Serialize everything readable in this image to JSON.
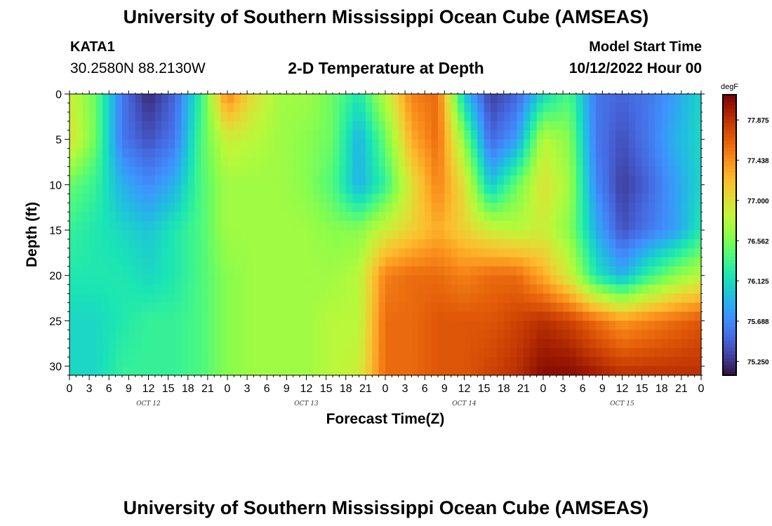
{
  "header": {
    "title": "University of Southern Mississippi Ocean Cube (AMSEAS)",
    "station": "KATA1",
    "coordinates": "30.2580N  88.2130W",
    "subtitle": "2-D Temperature at Depth",
    "model_start_label": "Model Start Time",
    "model_start_value": "10/12/2022 Hour 00"
  },
  "footer": {
    "title": "University of Southern Mississippi Ocean Cube (AMSEAS)"
  },
  "chart_data": {
    "type": "heatmap",
    "xlabel": "Forecast Time(Z)",
    "ylabel": "Depth (ft)",
    "ylim": [
      0,
      31
    ],
    "y_reversed": true,
    "xlim_hours": [
      0,
      96
    ],
    "x_tick_labels": [
      "0",
      "3",
      "6",
      "9",
      "12",
      "15",
      "18",
      "21",
      "0",
      "3",
      "6",
      "9",
      "12",
      "15",
      "18",
      "21",
      "0",
      "3",
      "6",
      "9",
      "12",
      "15",
      "18",
      "21",
      "0",
      "3",
      "6",
      "9",
      "12",
      "15",
      "18",
      "21",
      "0"
    ],
    "day_labels": [
      {
        "label": "OCT 12",
        "hour": 12
      },
      {
        "label": "OCT 13",
        "hour": 36
      },
      {
        "label": "OCT 14",
        "hour": 60
      },
      {
        "label": "OCT 15",
        "hour": 84
      }
    ],
    "y_ticks": [
      0,
      5,
      10,
      15,
      20,
      25,
      30
    ],
    "colorbar": {
      "unit": "degF",
      "min": 75.1,
      "max": 78.15,
      "tick_labels": [
        "77.875",
        "77.438",
        "77.000",
        "76.562",
        "76.125",
        "75.688",
        "75.250"
      ],
      "colormap": "turbo"
    },
    "depths_ft": [
      0,
      5,
      10,
      15,
      20,
      25,
      31
    ],
    "hours": [
      0,
      4,
      8,
      12,
      16,
      20,
      24,
      28,
      32,
      36,
      40,
      44,
      48,
      52,
      56,
      60,
      64,
      68,
      72,
      76,
      80,
      84,
      88,
      92,
      96
    ],
    "values_degF": [
      [
        76.9,
        76.5,
        75.6,
        75.2,
        75.5,
        76.3,
        77.5,
        77.0,
        76.7,
        76.7,
        76.5,
        76.2,
        76.8,
        77.5,
        77.6,
        76.0,
        75.3,
        75.5,
        76.1,
        76.4,
        75.6,
        75.5,
        75.6,
        75.8,
        76.1
      ],
      [
        77.0,
        76.5,
        75.6,
        75.4,
        75.6,
        76.4,
        76.9,
        76.8,
        76.7,
        76.6,
        76.5,
        75.9,
        76.5,
        77.3,
        77.6,
        76.6,
        75.5,
        75.8,
        76.8,
        76.6,
        75.6,
        75.4,
        75.6,
        75.9,
        76.1
      ],
      [
        76.5,
        76.3,
        75.9,
        75.7,
        75.9,
        76.4,
        76.7,
        76.7,
        76.7,
        76.6,
        76.4,
        75.9,
        76.3,
        77.0,
        77.5,
        77.0,
        76.0,
        76.5,
        77.0,
        76.7,
        75.7,
        75.3,
        75.5,
        75.8,
        76.1
      ],
      [
        76.3,
        76.2,
        76.1,
        76.0,
        76.2,
        76.4,
        76.7,
        76.7,
        76.7,
        76.7,
        76.6,
        76.6,
        76.9,
        77.1,
        77.3,
        77.1,
        76.9,
        76.8,
        76.9,
        76.6,
        75.9,
        75.4,
        75.6,
        75.8,
        76.2
      ],
      [
        76.2,
        76.2,
        76.2,
        76.1,
        76.2,
        76.4,
        76.6,
        76.7,
        76.7,
        76.7,
        76.7,
        76.8,
        77.5,
        77.6,
        77.6,
        77.5,
        77.6,
        77.6,
        77.3,
        76.9,
        76.2,
        75.9,
        76.3,
        76.6,
        76.8
      ],
      [
        76.1,
        76.1,
        76.2,
        76.3,
        76.3,
        76.4,
        76.6,
        76.7,
        76.7,
        76.7,
        76.8,
        76.8,
        77.6,
        77.6,
        77.7,
        77.7,
        77.7,
        77.8,
        77.9,
        77.8,
        77.6,
        77.4,
        77.5,
        77.6,
        77.7
      ],
      [
        76.1,
        76.1,
        76.3,
        76.3,
        76.3,
        76.4,
        76.6,
        76.7,
        76.7,
        76.7,
        76.8,
        76.9,
        77.6,
        77.6,
        77.7,
        77.7,
        77.8,
        77.9,
        78.1,
        78.1,
        78.0,
        77.9,
        77.9,
        77.9,
        77.9
      ]
    ]
  }
}
